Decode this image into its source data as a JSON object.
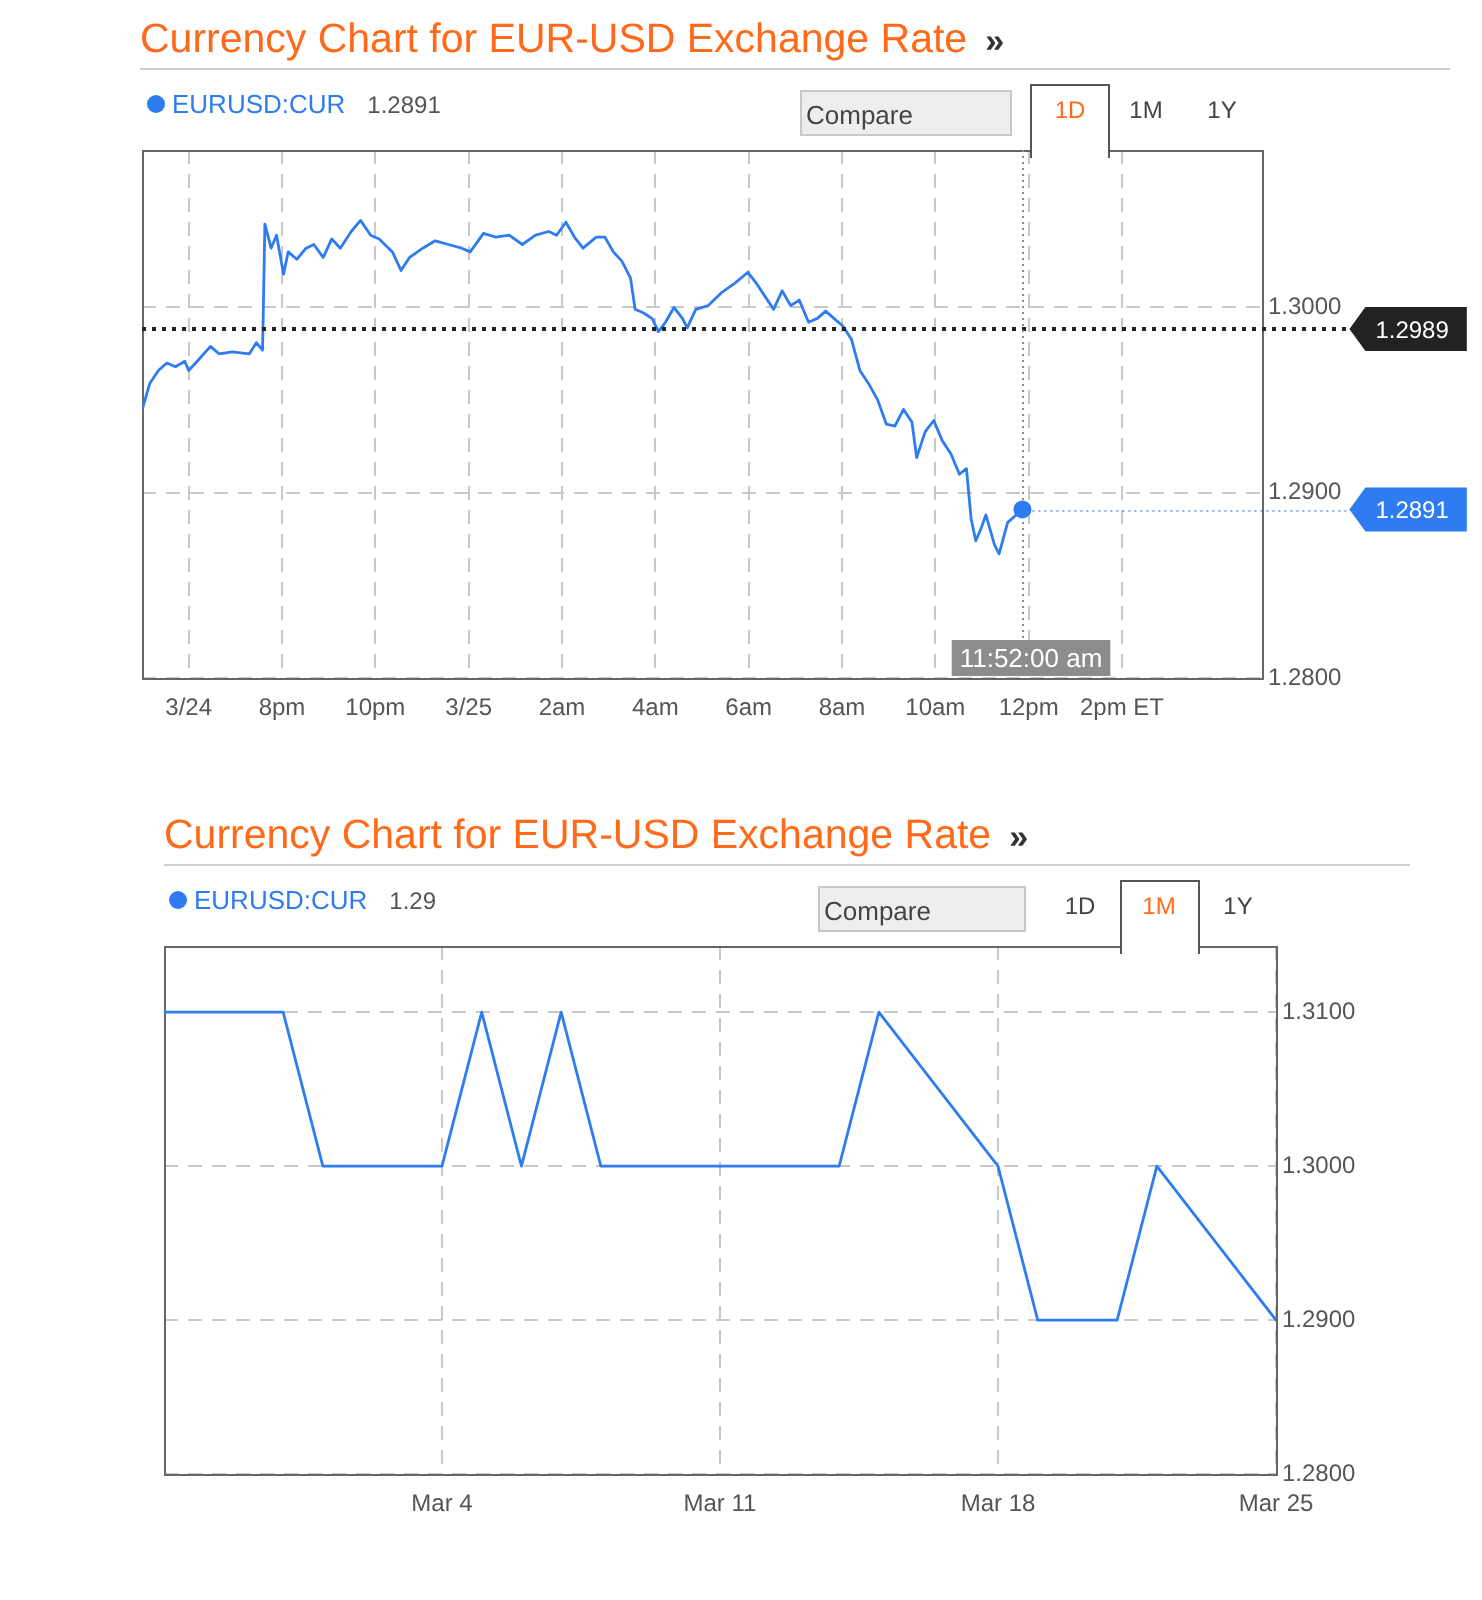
{
  "chart_data": [
    {
      "type": "line",
      "title": "Currency Chart for EUR-USD Exchange Rate",
      "annotations": [
        "»",
        "1.2891",
        "Compare",
        "1D",
        "1M",
        "1Y",
        {
          "text": "1.2891",
          "x": "--03-25T11:52",
          "y": 1.2891
        }
      ],
      "x": [
        "--03-24T17:01",
        "--03-24T17:10",
        "--03-24T17:21",
        "--03-24T17:32",
        "--03-24T17:43",
        "--03-24T17:55",
        "--03-24T18:00",
        "--03-24T18:11",
        "--03-24T18:28",
        "--03-24T18:39",
        "--03-24T18:56",
        "--03-24T19:18",
        "--03-24T19:27",
        "--03-24T19:35",
        "--03-24T19:38",
        "--03-24T19:46",
        "--03-24T19:53",
        "--03-24T20:02",
        "--03-24T20:08",
        "--03-24T20:19",
        "--03-24T20:31",
        "--03-24T20:41",
        "--03-24T20:53",
        "--03-24T21:04",
        "--03-24T21:15",
        "--03-24T21:29",
        "--03-24T21:41",
        "--03-24T21:54",
        "--03-24T22:05",
        "--03-24T22:22",
        "--03-24T22:33",
        "--03-24T22:44",
        "--03-24T23:01",
        "--03-24T23:17",
        "--03-24T23:34",
        "--03-24T23:51",
        "--03-25T00:02",
        "--03-25T00:19",
        "--03-25T00:35",
        "--03-25T00:52",
        "--03-25T01:09",
        "--03-25T01:26",
        "--03-25T01:43",
        "--03-25T01:53",
        "--03-25T02:05",
        "--03-25T02:16",
        "--03-25T02:27",
        "--03-25T02:44",
        "--03-25T02:55",
        "--03-25T03:06",
        "--03-25T03:17",
        "--03-25T03:28",
        "--03-25T03:34",
        "--03-25T03:45",
        "--03-25T03:56",
        "--03-25T04:04",
        "--03-25T04:13",
        "--03-25T04:24",
        "--03-25T04:35",
        "--03-25T04:41",
        "--03-25T04:52",
        "--03-25T05:08",
        "--03-25T05:25",
        "--03-25T05:42",
        "--03-25T05:59",
        "--03-25T06:10",
        "--03-25T06:21",
        "--03-25T06:32",
        "--03-25T06:43",
        "--03-25T06:54",
        "--03-25T07:05",
        "--03-25T07:17",
        "--03-25T07:28",
        "--03-25T07:39",
        "--03-25T07:50",
        "--03-25T08:01",
        "--03-25T08:12",
        "--03-25T08:23",
        "--03-25T08:34",
        "--03-25T08:46",
        "--03-25T08:57",
        "--03-25T09:08",
        "--03-25T09:19",
        "--03-25T09:30",
        "--03-25T09:36",
        "--03-25T09:47",
        "--03-25T09:58",
        "--03-25T10:09",
        "--03-25T10:20",
        "--03-25T10:31",
        "--03-25T10:40",
        "--03-25T10:46",
        "--03-25T10:52",
        "--03-25T10:59",
        "--03-25T11:05",
        "--03-25T11:16",
        "--03-25T11:22",
        "--03-25T11:33",
        "--03-25T11:44",
        "--03-25T11:52"
      ],
      "series": [
        {
          "name": "EURUSD:CUR",
          "color": "#2f7cf0",
          "values": [
            1.2946,
            1.2959,
            1.2966,
            1.297,
            1.2968,
            1.2971,
            1.2966,
            1.2971,
            1.2979,
            1.2975,
            1.2976,
            1.2975,
            1.2981,
            1.2977,
            1.3045,
            1.3032,
            1.3039,
            1.3018,
            1.303,
            1.3026,
            1.3032,
            1.3034,
            1.3027,
            1.3037,
            1.3032,
            1.3041,
            1.3047,
            1.3039,
            1.3037,
            1.303,
            1.302,
            1.3027,
            1.3032,
            1.3036,
            1.3034,
            1.3032,
            1.303,
            1.304,
            1.3038,
            1.3039,
            1.3034,
            1.3039,
            1.3041,
            1.3039,
            1.3046,
            1.3038,
            1.3032,
            1.3038,
            1.3038,
            1.303,
            1.3025,
            1.3016,
            1.2999,
            1.2997,
            1.2994,
            1.2987,
            1.2992,
            1.3,
            1.2994,
            1.2989,
            1.2999,
            1.3001,
            1.3008,
            1.3013,
            1.3019,
            1.3013,
            1.3006,
            1.2999,
            1.3009,
            1.3001,
            1.3004,
            1.2992,
            1.2994,
            1.2998,
            1.2994,
            1.299,
            1.2983,
            1.2966,
            1.2959,
            1.295,
            1.2937,
            1.2936,
            1.2945,
            1.2938,
            1.2919,
            1.2933,
            1.2939,
            1.2928,
            1.2921,
            1.291,
            1.2913,
            1.2886,
            1.2874,
            1.2881,
            1.2888,
            1.2872,
            1.2867,
            1.2884,
            1.2888,
            1.2891
          ]
        }
      ],
      "xlim": [
        "--03-24T17:00",
        "--03-25T17:00"
      ],
      "xticks": [
        {
          "value": "--03-24T18:00",
          "label": "3/24"
        },
        {
          "value": "--03-24T20:00",
          "label": "8pm"
        },
        {
          "value": "--03-24T22:00",
          "label": "10pm"
        },
        {
          "value": "--03-25T00:00",
          "label": "3/25"
        },
        {
          "value": "--03-25T02:00",
          "label": "2am"
        },
        {
          "value": "--03-25T04:00",
          "label": "4am"
        },
        {
          "value": "--03-25T06:00",
          "label": "6am"
        },
        {
          "value": "--03-25T08:00",
          "label": "8am"
        },
        {
          "value": "--03-25T10:00",
          "label": "10am"
        },
        {
          "value": "--03-25T12:00",
          "label": "12pm"
        },
        {
          "value": "--03-25T14:00",
          "label": "2pm ET"
        }
      ],
      "ylim": [
        1.28,
        1.3085
      ],
      "yticks": [
        {
          "value": 1.3,
          "label": "1.3000"
        },
        {
          "value": 1.29,
          "label": "1.2900"
        },
        {
          "value": 1.28,
          "label": "1.2800"
        }
      ],
      "grid": true,
      "legend": "top left",
      "ref_lines": [
        {
          "axis": "y",
          "value": 1.2989,
          "label": "1.2989",
          "color": "#222222",
          "line_style": "dotted"
        },
        {
          "axis": "x",
          "value": "--03-25T11:52",
          "label": "11:52:00 am",
          "color": "#8c8c8c",
          "line_style": "dotted"
        }
      ]
    },
    {
      "type": "line",
      "title": "Currency Chart for EUR-USD Exchange Rate",
      "annotations": [
        "»",
        "1.29",
        "Compare",
        "1D",
        "1M",
        "1Y"
      ],
      "x": [
        "--02-25",
        "--02-26",
        "--02-27",
        "--02-28",
        "--03-01",
        "--03-04",
        "--03-05",
        "--03-06",
        "--03-07",
        "--03-08",
        "--03-11",
        "--03-12",
        "--03-13",
        "--03-14",
        "--03-15",
        "--03-18",
        "--03-19",
        "--03-20",
        "--03-21",
        "--03-22",
        "--03-25"
      ],
      "series": [
        {
          "name": "EURUSD:CUR",
          "color": "#2f7cf0",
          "values": [
            1.31,
            1.31,
            1.31,
            1.31,
            1.3,
            1.3,
            1.31,
            1.3,
            1.31,
            1.3,
            1.3,
            1.3,
            1.3,
            1.3,
            1.31,
            1.3,
            1.29,
            1.29,
            1.29,
            1.3,
            1.29
          ]
        }
      ],
      "xlim": [
        "--02-25",
        "--03-25"
      ],
      "xticks": [
        {
          "value": "--03-04",
          "label": "Mar 4"
        },
        {
          "value": "--03-11",
          "label": "Mar 11"
        },
        {
          "value": "--03-18",
          "label": "Mar 18"
        },
        {
          "value": "--03-25",
          "label": "Mar 25"
        }
      ],
      "ylim": [
        1.28,
        1.3143
      ],
      "yticks": [
        {
          "value": 1.31,
          "label": "1.3100"
        },
        {
          "value": 1.3,
          "label": "1.3000"
        },
        {
          "value": 1.29,
          "label": "1.2900"
        },
        {
          "value": 1.28,
          "label": "1.2800"
        }
      ],
      "grid": true,
      "legend": "top left"
    }
  ]
}
